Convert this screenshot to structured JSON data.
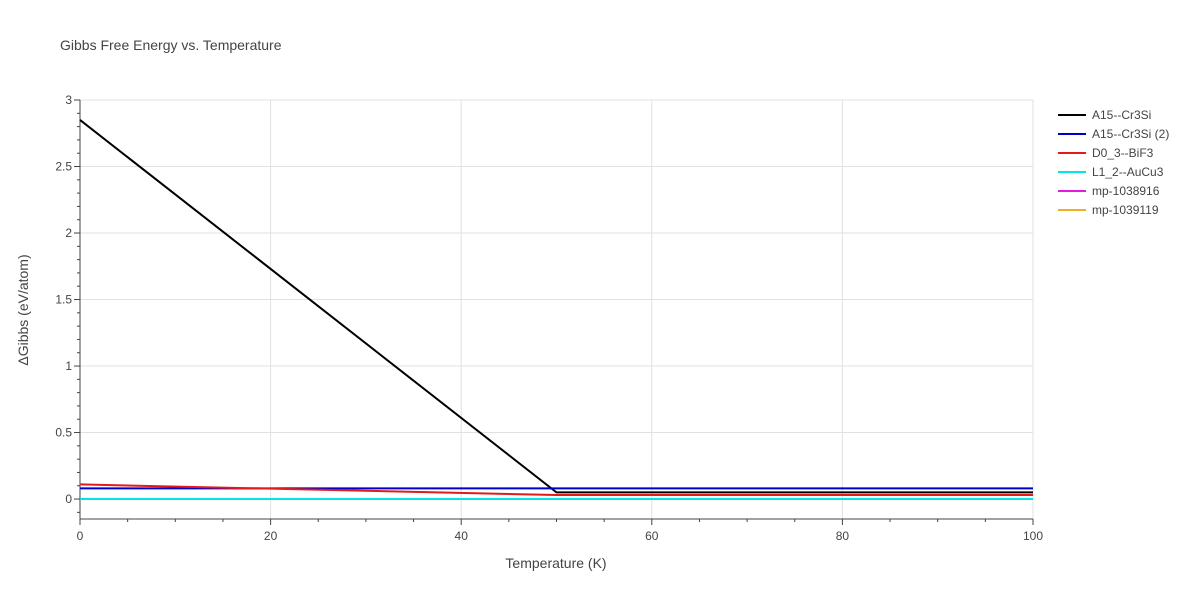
{
  "chart_data": {
    "type": "line",
    "title": "Gibbs Free Energy vs. Temperature",
    "xlabel": "Temperature (K)",
    "ylabel": "ΔGibbs (eV/atom)",
    "xlim": [
      0,
      100
    ],
    "ylim": [
      -0.15,
      3
    ],
    "xticks": [
      0,
      20,
      40,
      60,
      80,
      100
    ],
    "yticks": [
      0,
      0.5,
      1,
      1.5,
      2,
      2.5,
      3
    ],
    "ytick_labels": [
      "0",
      "0.5",
      "1",
      "1.5",
      "2",
      "2.5",
      "3"
    ],
    "grid": true,
    "legend_position": "right",
    "series": [
      {
        "name": "A15--Cr3Si",
        "color": "#000000",
        "x": [
          0,
          50,
          100
        ],
        "y": [
          2.85,
          0.05,
          0.05
        ]
      },
      {
        "name": "A15--Cr3Si (2)",
        "color": "#0000cc",
        "x": [
          0,
          50,
          100
        ],
        "y": [
          0.08,
          0.08,
          0.08
        ]
      },
      {
        "name": "D0_3--BiF3",
        "color": "#e31a1c",
        "x": [
          0,
          50,
          100
        ],
        "y": [
          0.11,
          0.03,
          0.03
        ]
      },
      {
        "name": "L1_2--AuCu3",
        "color": "#00e5e5",
        "x": [
          0,
          100
        ],
        "y": [
          0,
          0
        ]
      },
      {
        "name": "mp-1038916",
        "color": "#e31ae3",
        "x": [],
        "y": []
      },
      {
        "name": "mp-1039119",
        "color": "#f0b020",
        "x": [],
        "y": []
      }
    ]
  }
}
